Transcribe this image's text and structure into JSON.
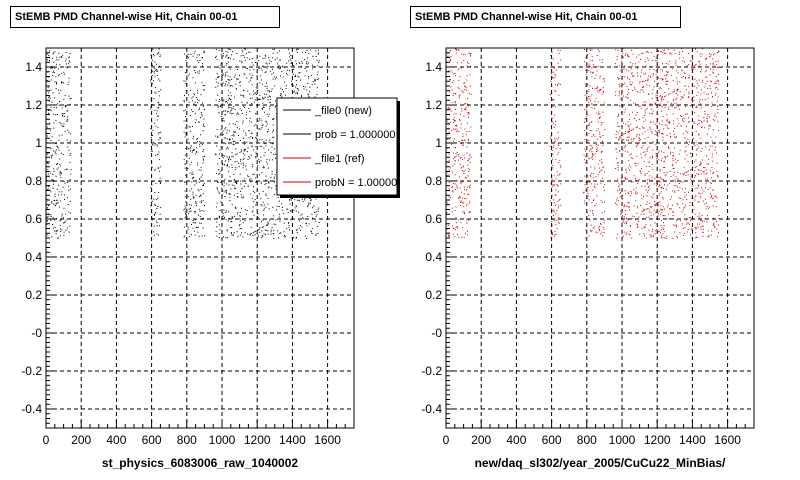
{
  "chart_data": [
    {
      "type": "scatter",
      "title": "StEMB PMD Channel-wise Hit, Chain 00-01",
      "xlabel": "st_physics_6083006_raw_1040002",
      "ylabel": "",
      "xlim": [
        0,
        1750
      ],
      "ylim": [
        -0.5,
        1.5
      ],
      "xticks": [
        "0",
        "200",
        "400",
        "600",
        "800",
        "1000",
        "1200",
        "1400",
        "1600"
      ],
      "yticks": [
        "-0.4",
        "-0.2",
        "-0",
        "0.2",
        "0.4",
        "0.6",
        "0.8",
        "1",
        "1.2",
        "1.4"
      ],
      "grid": true,
      "marker_color": "#000000",
      "hit_bands": [
        {
          "x": [
            0,
            140
          ],
          "y": [
            0.5,
            1.5
          ]
        },
        {
          "x": [
            590,
            650
          ],
          "y": [
            0.5,
            1.5
          ]
        },
        {
          "x": [
            780,
            900
          ],
          "y": [
            0.5,
            1.5
          ]
        },
        {
          "x": [
            960,
            1550
          ],
          "y": [
            0.5,
            1.5
          ]
        }
      ],
      "legend": {
        "placement": "top-right",
        "entries": [
          {
            "label": "_file0 (new)",
            "color": "#000000"
          },
          {
            "label": "prob = 1.000000",
            "color": "#000000"
          },
          {
            "label": "_file1 (ref)",
            "color": "#cc0000"
          },
          {
            "label": "probN = 1.000000",
            "color": "#cc0000"
          }
        ]
      }
    },
    {
      "type": "scatter",
      "title": "StEMB PMD Channel-wise Hit, Chain 00-01",
      "xlabel": "new/daq_sl302/year_2005/CuCu22_MinBias/",
      "ylabel": "",
      "xlim": [
        0,
        1750
      ],
      "ylim": [
        -0.5,
        1.5
      ],
      "xticks": [
        "0",
        "200",
        "400",
        "600",
        "800",
        "1000",
        "1200",
        "1400",
        "1600"
      ],
      "yticks": [
        "-0.4",
        "-0.2",
        "-0",
        "0.2",
        "0.4",
        "0.6",
        "0.8",
        "1",
        "1.2",
        "1.4"
      ],
      "grid": true,
      "marker_color": "#cc0000",
      "hit_bands": [
        {
          "x": [
            0,
            140
          ],
          "y": [
            0.5,
            1.5
          ]
        },
        {
          "x": [
            590,
            650
          ],
          "y": [
            0.5,
            1.5
          ]
        },
        {
          "x": [
            780,
            900
          ],
          "y": [
            0.5,
            1.5
          ]
        },
        {
          "x": [
            960,
            1550
          ],
          "y": [
            0.5,
            1.5
          ]
        }
      ]
    }
  ]
}
